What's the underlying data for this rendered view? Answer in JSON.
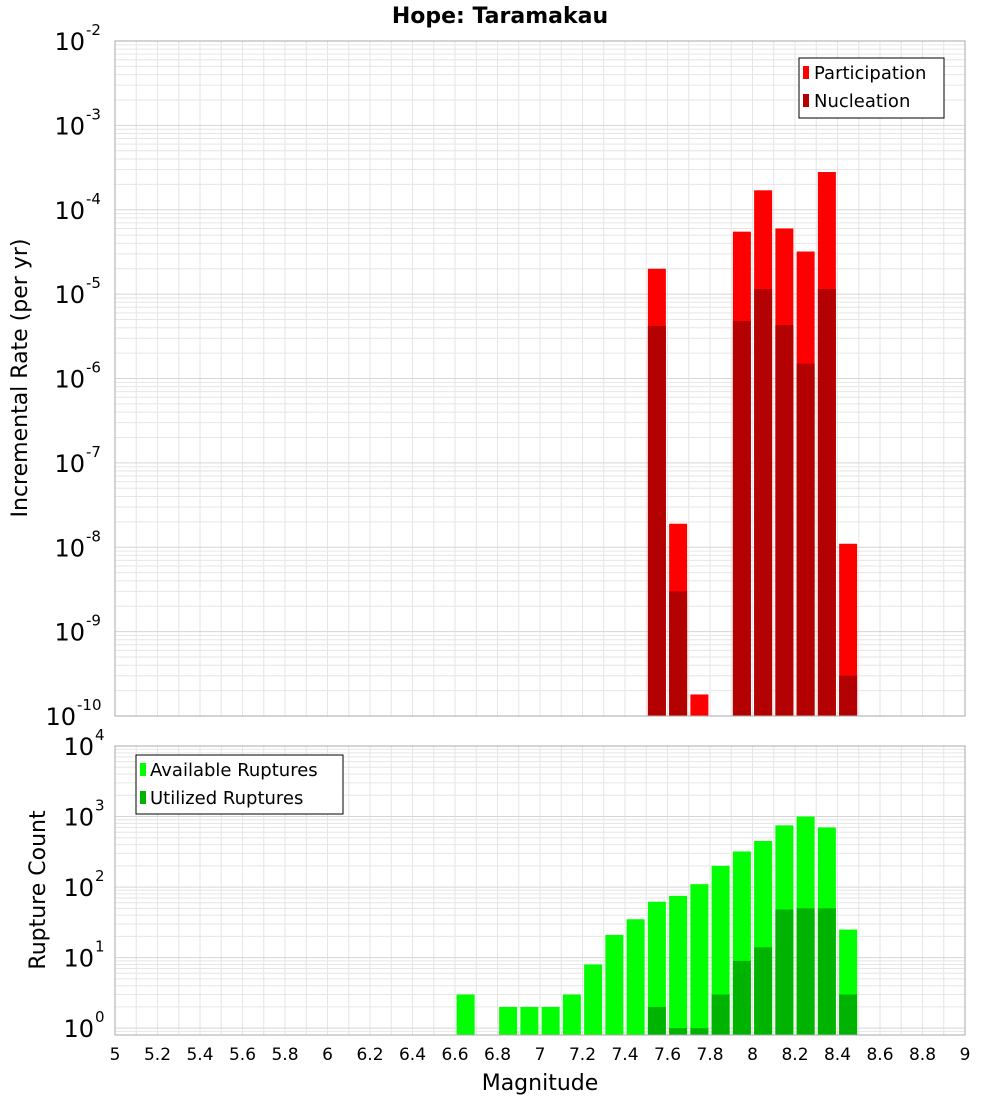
{
  "title": "Hope: Taramakau",
  "colors": {
    "participation": "#ff0000",
    "nucleation": "#b30000",
    "available": "#00ff00",
    "utilized": "#00b300",
    "grid": "#e6e6e6",
    "frame": "#aaaaaa"
  },
  "chart_data": [
    {
      "type": "bar",
      "ylabel": "Incremental Rate (per yr)",
      "xlabel": "",
      "log_y": true,
      "ylim": [
        1e-10,
        0.01
      ],
      "xlim": [
        5,
        9
      ],
      "grid": true,
      "legend_position": "top-right",
      "x": [
        7.55,
        7.65,
        7.75,
        7.95,
        8.05,
        8.15,
        8.25,
        8.35,
        8.45
      ],
      "series": [
        {
          "name": "Participation",
          "values": [
            2e-05,
            1.9e-08,
            1.8e-10,
            5.5e-05,
            0.00017,
            6e-05,
            3.2e-05,
            0.00028,
            1.1e-08
          ]
        },
        {
          "name": "Nucleation",
          "values": [
            4.2e-06,
            3e-09,
            null,
            4.8e-06,
            1.15e-05,
            4.3e-06,
            1.5e-06,
            1.15e-05,
            3e-10
          ]
        }
      ],
      "ytick_exponents": [
        "-10",
        "-9",
        "-8",
        "-7",
        "-6",
        "-5",
        "-4",
        "-3",
        "-2"
      ]
    },
    {
      "type": "bar",
      "ylabel": "Rupture Count",
      "xlabel": "Magnitude",
      "log_y": true,
      "ylim": [
        0.8,
        10000
      ],
      "xlim": [
        5,
        9
      ],
      "grid": true,
      "legend_position": "top-left",
      "x": [
        6.65,
        6.85,
        6.95,
        7.05,
        7.15,
        7.25,
        7.35,
        7.45,
        7.55,
        7.65,
        7.75,
        7.85,
        7.95,
        8.05,
        8.15,
        8.25,
        8.35,
        8.45
      ],
      "series": [
        {
          "name": "Available Ruptures",
          "values": [
            3,
            2,
            2,
            2,
            3,
            8,
            21,
            35,
            62,
            75,
            110,
            200,
            320,
            450,
            750,
            1000,
            700,
            25
          ]
        },
        {
          "name": "Utilized Ruptures",
          "values": [
            null,
            null,
            null,
            null,
            null,
            null,
            null,
            null,
            2,
            1,
            1,
            3,
            9,
            14,
            48,
            50,
            50,
            3
          ]
        }
      ],
      "ytick_exponents": [
        "0",
        "1",
        "2",
        "3",
        "4"
      ]
    }
  ],
  "x_ticks": [
    "5",
    "5.2",
    "5.4",
    "5.6",
    "5.8",
    "6",
    "6.2",
    "6.4",
    "6.6",
    "6.8",
    "7",
    "7.2",
    "7.4",
    "7.6",
    "7.8",
    "8",
    "8.2",
    "8.4",
    "8.6",
    "8.8",
    "9"
  ],
  "ytick_base": "10"
}
